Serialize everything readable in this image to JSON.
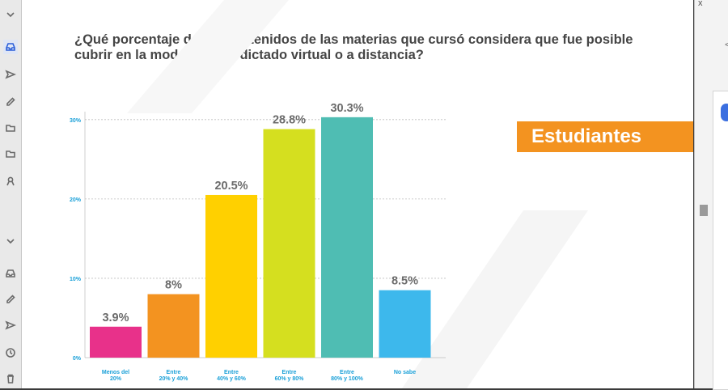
{
  "rail": {
    "icons": [
      "chevron-down-icon",
      "inbox-icon",
      "send-icon",
      "pencil-icon",
      "folder-icon",
      "folder-icon",
      "person-icon",
      "chevron-down-icon",
      "inbox-icon",
      "pencil-icon",
      "send-icon",
      "clock-icon",
      "trash-icon"
    ]
  },
  "slide": {
    "title_line1": "¿Qué porcentaje de los contenidos de las materias que cursó considera que fue posible",
    "title_line2": "cubrir en la modalidad de dictado virtual o a distancia?",
    "legend_label": "Estudiantes"
  },
  "chart_data": {
    "type": "bar",
    "title": "¿Qué porcentaje de los contenidos de las materias que cursó considera que fue posible cubrir en la modalidad de dictado virtual o a distancia?",
    "categories": [
      [
        "Menos del",
        "20%"
      ],
      [
        "Entre",
        "20% y 40%"
      ],
      [
        "Entre",
        "40% y 60%"
      ],
      [
        "Entre",
        "60% y 80%"
      ],
      [
        "Entre",
        "80% y 100%"
      ],
      [
        "No sabe"
      ]
    ],
    "values": [
      3.9,
      8,
      20.5,
      28.8,
      30.3,
      8.5
    ],
    "value_labels": [
      "3.9%",
      "8%",
      "20.5%",
      "28.8%",
      "30.3%",
      "8.5%"
    ],
    "colors": [
      "#e8318a",
      "#f39320",
      "#ffd000",
      "#d5df1f",
      "#4fbdb3",
      "#3db8ec"
    ],
    "y_ticks": [
      0,
      10,
      20,
      30
    ],
    "y_tick_labels": [
      "0%",
      "10%",
      "20%",
      "30%"
    ],
    "ylim": [
      0,
      31
    ],
    "tick_color": "#1aa0d8",
    "grid": true,
    "xlabel": "",
    "ylabel": ""
  },
  "right_panel": {
    "close_glyph": "x",
    "arrow_glyph": "<"
  }
}
